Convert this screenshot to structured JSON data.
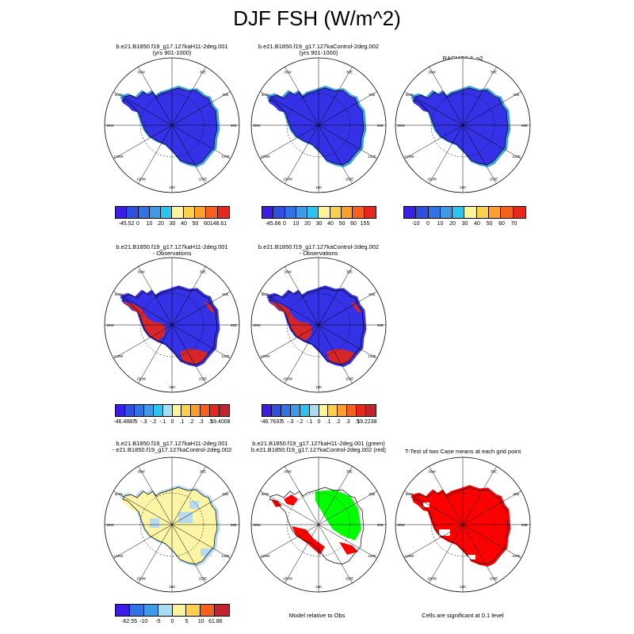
{
  "title": "DJF FSH (W/m^2)",
  "colors": {
    "scale": [
      "#3a1ee6",
      "#2e4fe0",
      "#2f73e6",
      "#3d9be8",
      "#2cc3f0",
      "#a7dcf2",
      "#fbf59a",
      "#fcd04a",
      "#fca02a",
      "#f8601d",
      "#e7261c",
      "#c3232a"
    ],
    "blue_fill": "#3431e6",
    "red_fill": "#d7262a",
    "pale_yellow": "#fdf5a6",
    "pale_blue": "#b7daf0",
    "green": "#00ff00",
    "bright_red": "#ff0000"
  },
  "panels": [
    {
      "id": "p1",
      "title1": "b.e21.B1850.f19_g17.127kaH11-2deg.001",
      "title2": "(yrs 901-1000)",
      "style": "blue"
    },
    {
      "id": "p2",
      "title1": "b.e21.B1850.f19_g17.127kaControl-2deg.002",
      "title2": "(yrs 901-1000)",
      "style": "blue"
    },
    {
      "id": "p3",
      "title1": "RACMO2.3_p2",
      "title2": "",
      "style": "blue"
    },
    {
      "id": "p4",
      "title1": "b.e21.B1850.f19_g17.127kaH11-2deg.001",
      "title2": "- Observations",
      "style": "diff"
    },
    {
      "id": "p5",
      "title1": "b.e21.B1850.f19_g17.127kaControl-2deg.002",
      "title2": "- Observations",
      "style": "diff"
    },
    {
      "id": "p6",
      "title1": "b.e21.B1850.f19_g17.127kaH11-2deg.001",
      "title2": "- e21.B1850.f19_g17.127kaControl-2deg.002",
      "style": "pale"
    },
    {
      "id": "p7",
      "title1": "b.e21.B1850.f19_g17.127kaH11-2deg.001 (green)",
      "title2": "b.e21.B1850.f19_g17.127kaControl-2deg.002 (red)",
      "style": "greenred"
    },
    {
      "id": "p8",
      "title1": "T-Test of two Case means at each grid point",
      "title2": "",
      "style": "red"
    }
  ],
  "map_labels": {
    "lon": [
      "30E",
      "60E",
      "90E",
      "120E",
      "150E",
      "180",
      "150W",
      "120W",
      "90W",
      "60W",
      "30W"
    ]
  },
  "legends": {
    "l1": [
      "-45.52",
      "0",
      "10",
      "20",
      "30",
      "40",
      "50",
      "60",
      "148.61"
    ],
    "l2": [
      "-45.66",
      "0",
      "10",
      "20",
      "30",
      "40",
      "50",
      "60",
      "155"
    ],
    "l3": [
      "-10",
      "0",
      "10",
      "20",
      "30",
      "40",
      "50",
      "60",
      "70"
    ],
    "l4": [
      "-46.4887",
      "-.5",
      "-.3",
      "-.2",
      "-.1",
      "0",
      ".1",
      ".2",
      ".3",
      ".5",
      "19.4008"
    ],
    "l5": [
      "-46.7637",
      "-.5",
      "-.3",
      "-.2",
      "-.1",
      "0",
      ".1",
      ".2",
      ".3",
      ".5",
      "19.2238"
    ],
    "l6": [
      "-62.55",
      "-10",
      "-5",
      "0",
      "5",
      "10",
      "61.86"
    ]
  },
  "notes": {
    "model_relative": "Model relative to Obs",
    "cells_significant": "Cells are significant at 0.1 level"
  }
}
